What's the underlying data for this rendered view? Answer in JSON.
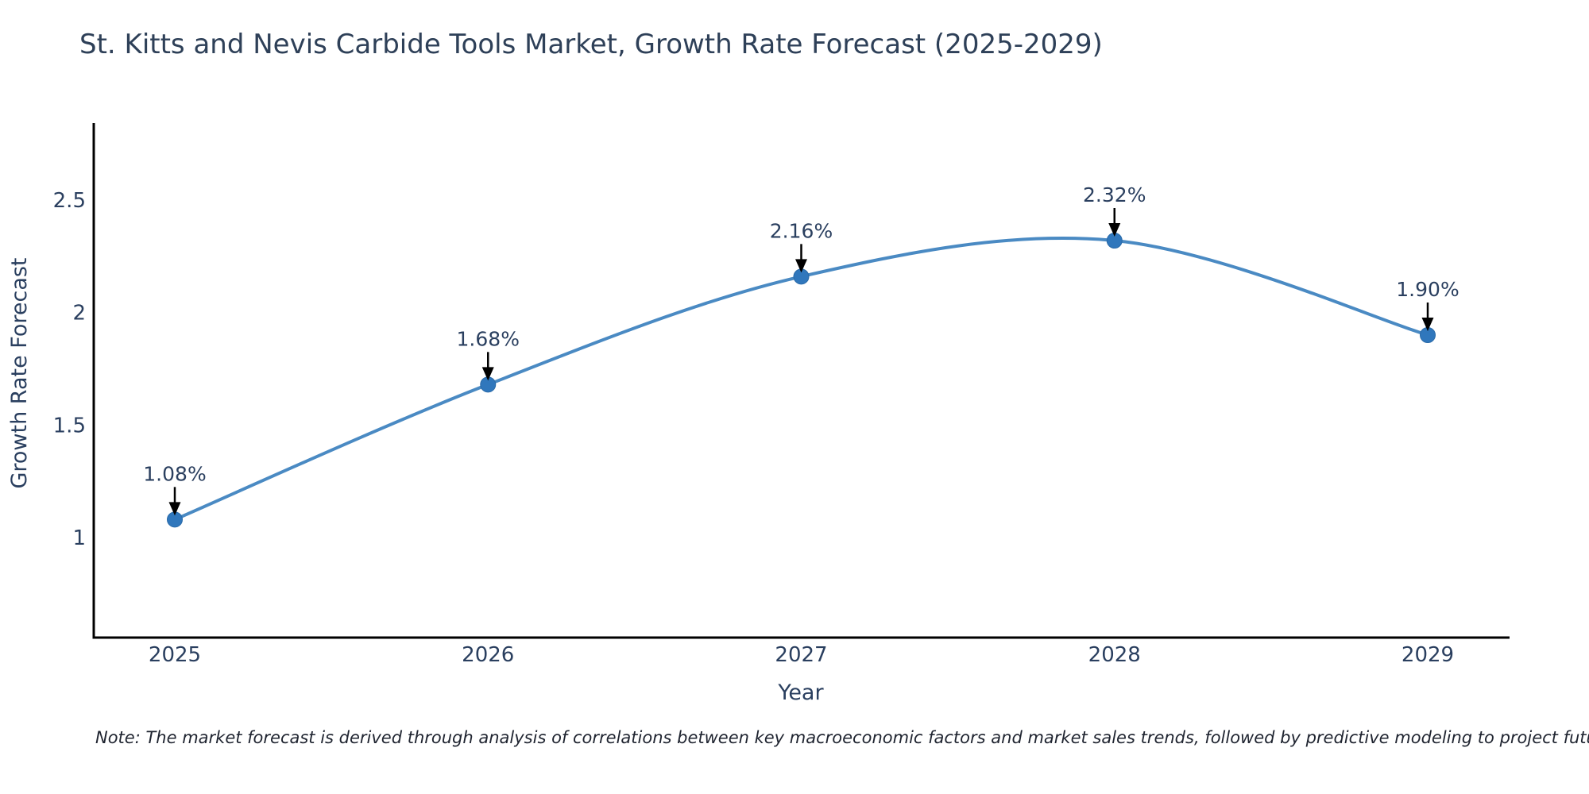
{
  "title": "St. Kitts and Nevis Carbide Tools Market, Growth Rate Forecast (2025-2029)",
  "note": "Note: The market forecast is derived through analysis of correlations between key macroeconomic factors and market sales trends, followed by predictive modeling to project future sales",
  "chart_data": {
    "type": "line",
    "title": "St. Kitts and Nevis Carbide Tools Market, Growth Rate Forecast (2025-2029)",
    "xlabel": "Year",
    "ylabel": "Growth Rate Forecast",
    "x": [
      2025,
      2026,
      2027,
      2028,
      2029
    ],
    "y": [
      1.08,
      1.68,
      2.16,
      2.32,
      1.9
    ],
    "point_labels": [
      "1.08%",
      "1.68%",
      "2.16%",
      "2.32%",
      "1.90%"
    ],
    "x_tick_labels": [
      "2025",
      "2026",
      "2027",
      "2028",
      "2029"
    ],
    "y_ticks": [
      1,
      1.5,
      2,
      2.5
    ],
    "y_tick_labels": [
      "1",
      "1.5",
      "2",
      "2.5"
    ],
    "ylim": [
      0.56,
      2.85
    ],
    "line_shape": "spline",
    "grid": false,
    "legend": "none",
    "colors": {
      "line": "#4a8ac3",
      "marker": "#3077bc",
      "marker_edge": "#2a6aa8",
      "arrow": "#000000",
      "axis_line": "#000000",
      "title_text": "#2e4058",
      "tick_text": "#2a3f5f",
      "note_text": "#1f2430"
    }
  }
}
